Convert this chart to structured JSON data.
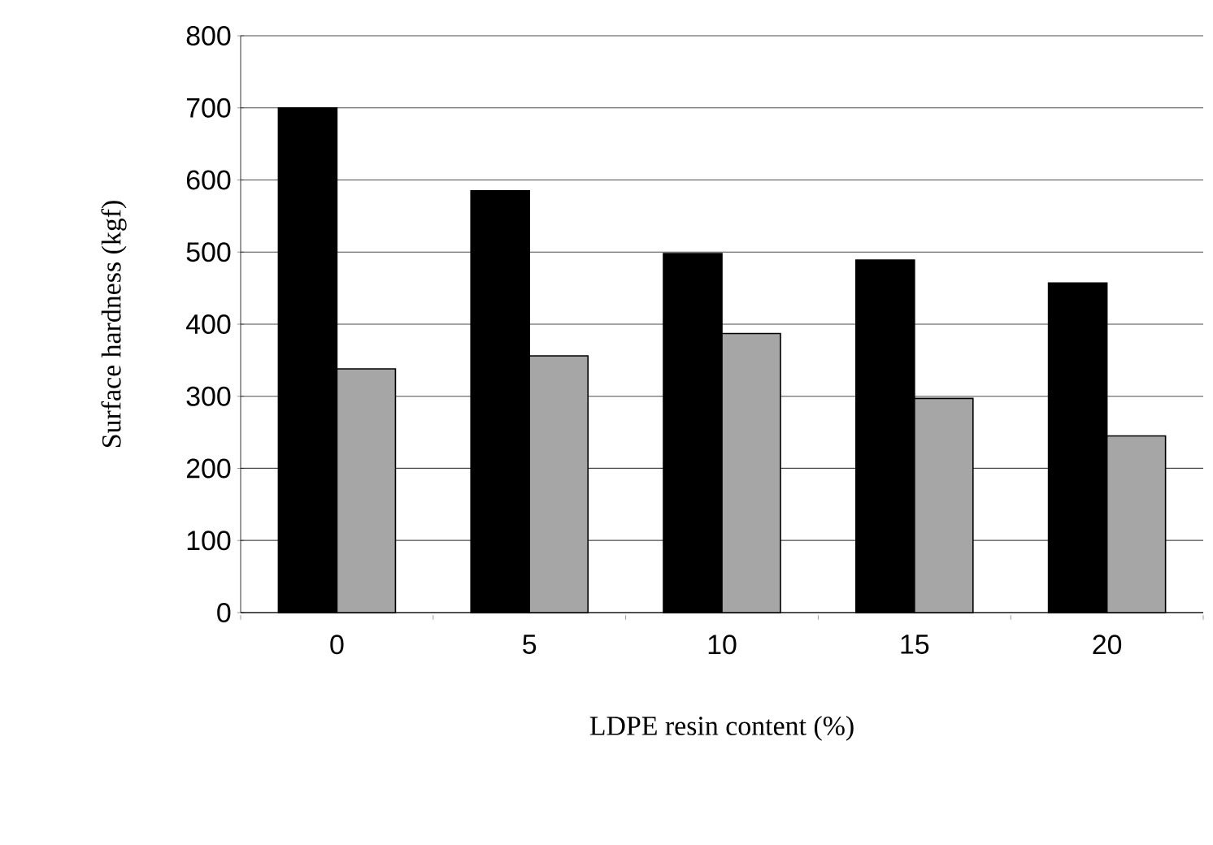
{
  "chart_data": {
    "type": "bar",
    "xlabel": "LDPE resin content (%)",
    "ylabel": "Surface hardness (kgf)",
    "categories": [
      "0",
      "5",
      "10",
      "15",
      "20"
    ],
    "series": [
      {
        "color": "#000000",
        "values": [
          700,
          585,
          498,
          489,
          457
        ]
      },
      {
        "color": "#a6a6a6",
        "values": [
          338,
          356,
          387,
          297,
          245
        ]
      }
    ],
    "ylim": [
      0,
      800
    ],
    "yticks": [
      0,
      100,
      200,
      300,
      400,
      500,
      600,
      700,
      800
    ],
    "grid": "y"
  }
}
